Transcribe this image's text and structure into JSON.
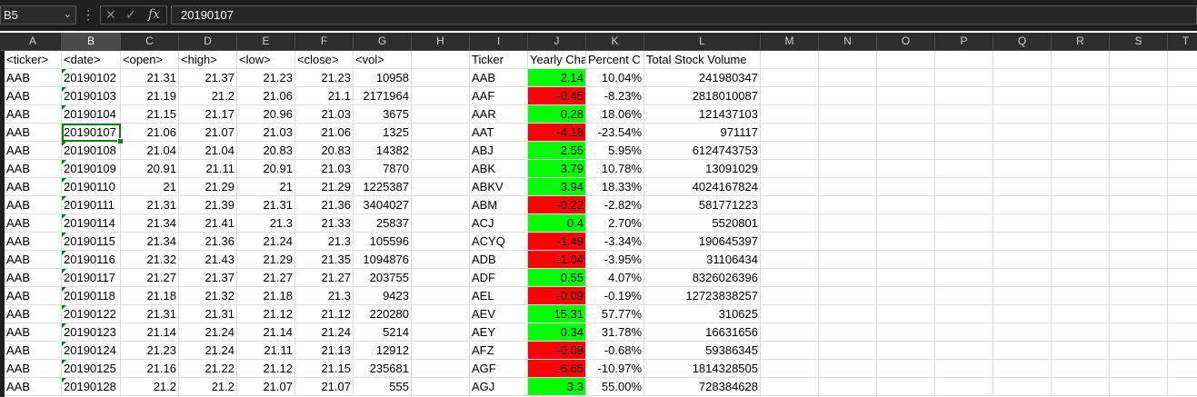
{
  "name_box": "B5",
  "formula_bar": {
    "value": "20190107",
    "cancel_icon": "✕",
    "enter_icon": "✓",
    "fx_label": "fx"
  },
  "columns": [
    "A",
    "B",
    "C",
    "D",
    "E",
    "F",
    "G",
    "H",
    "I",
    "J",
    "K",
    "L",
    "M",
    "N",
    "O",
    "P",
    "Q",
    "R",
    "S",
    "T"
  ],
  "selected_column": "B",
  "headers": [
    "<ticker>",
    "<date>",
    "<open>",
    "<high>",
    "<low>",
    "<close>",
    "<vol>",
    "",
    "Ticker",
    "Yearly Cha",
    "Percent C",
    "Total Stock Volume"
  ],
  "rows": [
    [
      "AAB",
      "20190102",
      "21.31",
      "21.37",
      "21.23",
      "21.23",
      "10958",
      "",
      "AAB",
      "2.14",
      "10.04%",
      "241980347"
    ],
    [
      "AAB",
      "20190103",
      "21.19",
      "21.2",
      "21.06",
      "21.1",
      "2171964",
      "",
      "AAF",
      "-0.45",
      "-8.23%",
      "2818010087"
    ],
    [
      "AAB",
      "20190104",
      "21.15",
      "21.17",
      "20.96",
      "21.03",
      "3675",
      "",
      "AAR",
      "0.28",
      "18.06%",
      "121437103"
    ],
    [
      "AAB",
      "20190107",
      "21.06",
      "21.07",
      "21.03",
      "21.06",
      "1325",
      "",
      "AAT",
      "-4.18",
      "-23.54%",
      "971117"
    ],
    [
      "AAB",
      "20190108",
      "21.04",
      "21.04",
      "20.83",
      "20.83",
      "14382",
      "",
      "ABJ",
      "2.55",
      "5.95%",
      "6124743753"
    ],
    [
      "AAB",
      "20190109",
      "20.91",
      "21.11",
      "20.91",
      "21.03",
      "7870",
      "",
      "ABK",
      "3.79",
      "10.78%",
      "13091029"
    ],
    [
      "AAB",
      "20190110",
      "21",
      "21.29",
      "21",
      "21.29",
      "1225387",
      "",
      "ABKV",
      "3.94",
      "18.33%",
      "4024167824"
    ],
    [
      "AAB",
      "20190111",
      "21.31",
      "21.39",
      "21.31",
      "21.36",
      "3404027",
      "",
      "ABM",
      "-0.22",
      "-2.82%",
      "581771223"
    ],
    [
      "AAB",
      "20190114",
      "21.34",
      "21.41",
      "21.3",
      "21.33",
      "25837",
      "",
      "ACJ",
      "0.4",
      "2.70%",
      "5520801"
    ],
    [
      "AAB",
      "20190115",
      "21.34",
      "21.36",
      "21.24",
      "21.3",
      "105596",
      "",
      "ACYQ",
      "-1.49",
      "-3.34%",
      "190645397"
    ],
    [
      "AAB",
      "20190116",
      "21.32",
      "21.43",
      "21.29",
      "21.35",
      "1094876",
      "",
      "ADB",
      "-1.04",
      "-3.95%",
      "31106434"
    ],
    [
      "AAB",
      "20190117",
      "21.27",
      "21.37",
      "21.27",
      "21.27",
      "203755",
      "",
      "ADF",
      "0.55",
      "4.07%",
      "8326026396"
    ],
    [
      "AAB",
      "20190118",
      "21.18",
      "21.32",
      "21.18",
      "21.3",
      "9423",
      "",
      "AEL",
      "-0.09",
      "-0.19%",
      "12723838257"
    ],
    [
      "AAB",
      "20190122",
      "21.31",
      "21.31",
      "21.12",
      "21.12",
      "220280",
      "",
      "AEV",
      "15.31",
      "57.77%",
      "310625"
    ],
    [
      "AAB",
      "20190123",
      "21.14",
      "21.24",
      "21.14",
      "21.24",
      "5214",
      "",
      "AEY",
      "0.34",
      "31.78%",
      "16631656"
    ],
    [
      "AAB",
      "20190124",
      "21.23",
      "21.24",
      "21.11",
      "21.13",
      "12912",
      "",
      "AFZ",
      "-0.09",
      "-0.68%",
      "59386345"
    ],
    [
      "AAB",
      "20190125",
      "21.16",
      "21.22",
      "21.12",
      "21.15",
      "235681",
      "",
      "AGF",
      "-6.65",
      "-10.97%",
      "1814328505"
    ],
    [
      "AAB",
      "20190128",
      "21.2",
      "21.2",
      "21.07",
      "21.07",
      "555",
      "",
      "AGJ",
      "3.3",
      "55.00%",
      "728384628"
    ]
  ],
  "colors": {
    "positive": "#00ff00",
    "negative": "#ff0000",
    "selection": "#107c10"
  }
}
